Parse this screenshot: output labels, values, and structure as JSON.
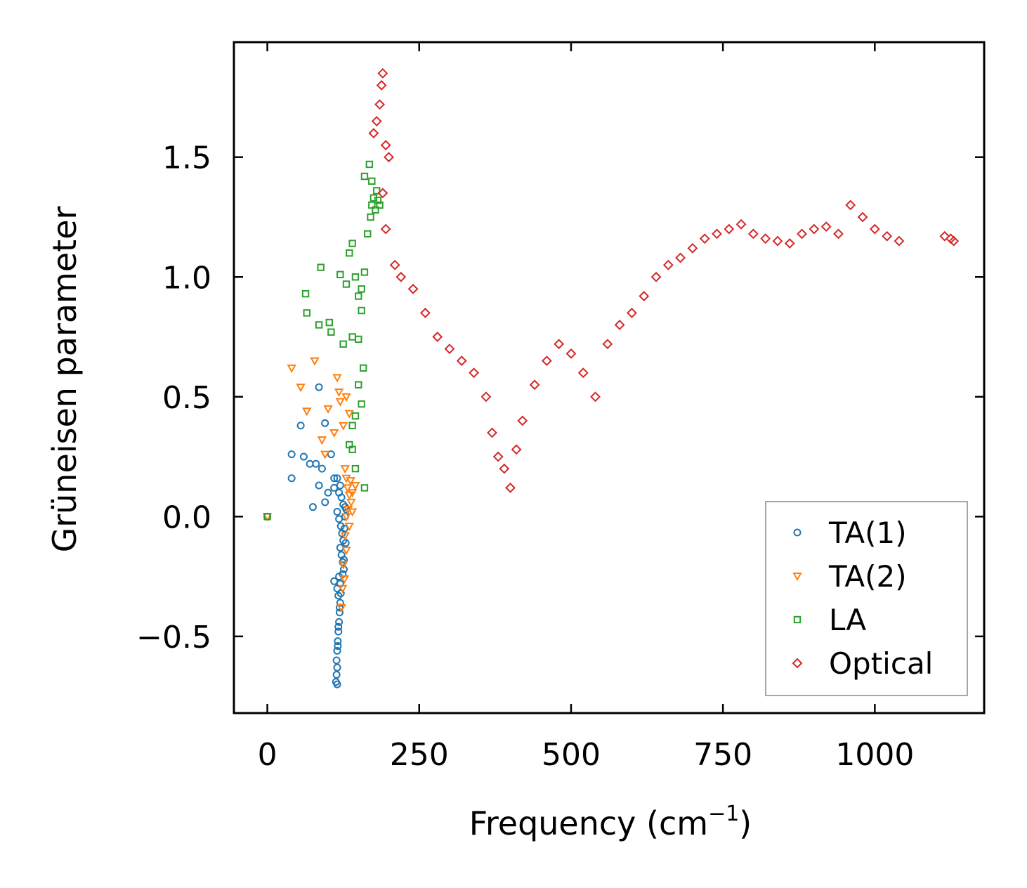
{
  "chart_data": {
    "type": "scatter",
    "title": "",
    "xlabel": "Frequency (cm",
    "xlabel_sup": "−1",
    "xlabel_suffix": ")",
    "ylabel": "Grüneisen parameter",
    "xlim": [
      -55,
      1180
    ],
    "ylim": [
      -0.82,
      1.98
    ],
    "xticks": [
      {
        "value": 0,
        "label": "0"
      },
      {
        "value": 250,
        "label": "250"
      },
      {
        "value": 500,
        "label": "500"
      },
      {
        "value": 750,
        "label": "750"
      },
      {
        "value": 1000,
        "label": "1000"
      }
    ],
    "yticks": [
      {
        "value": -0.5,
        "label": "−0.5"
      },
      {
        "value": 0.0,
        "label": "0.0"
      },
      {
        "value": 0.5,
        "label": "0.5"
      },
      {
        "value": 1.0,
        "label": "1.0"
      },
      {
        "value": 1.5,
        "label": "1.5"
      }
    ],
    "legend_position": "bottom-right",
    "series": [
      {
        "name": "TA(1)",
        "marker": "circle",
        "color": "#1f77b4",
        "points": [
          [
            0,
            0
          ],
          [
            40,
            0.26
          ],
          [
            40,
            0.16
          ],
          [
            55,
            0.38
          ],
          [
            60,
            0.25
          ],
          [
            70,
            0.22
          ],
          [
            75,
            0.04
          ],
          [
            80,
            0.22
          ],
          [
            85,
            0.54
          ],
          [
            85,
            0.13
          ],
          [
            90,
            0.2
          ],
          [
            95,
            0.39
          ],
          [
            95,
            0.06
          ],
          [
            100,
            0.1
          ],
          [
            105,
            0.26
          ],
          [
            110,
            0.16
          ],
          [
            110,
            0.12
          ],
          [
            115,
            0.16
          ],
          [
            118,
            0.1
          ],
          [
            120,
            0.13
          ],
          [
            122,
            0.08
          ],
          [
            125,
            0.05
          ],
          [
            128,
            0.04
          ],
          [
            130,
            0.03
          ],
          [
            115,
            0.02
          ],
          [
            118,
            -0.01
          ],
          [
            121,
            -0.04
          ],
          [
            123,
            -0.07
          ],
          [
            125,
            -0.1
          ],
          [
            120,
            -0.13
          ],
          [
            122,
            -0.16
          ],
          [
            124,
            -0.19
          ],
          [
            126,
            -0.22
          ],
          [
            118,
            -0.25
          ],
          [
            120,
            -0.28
          ],
          [
            115,
            -0.3
          ],
          [
            110,
            -0.27
          ],
          [
            117,
            -0.33
          ],
          [
            120,
            -0.36
          ],
          [
            119,
            -0.4
          ],
          [
            118,
            -0.44
          ],
          [
            117,
            -0.48
          ],
          [
            116,
            -0.52
          ],
          [
            115,
            -0.56
          ],
          [
            114,
            -0.6
          ],
          [
            115,
            -0.63
          ],
          [
            114,
            -0.66
          ],
          [
            113,
            -0.69
          ],
          [
            115,
            -0.7
          ],
          [
            128,
            0.0
          ],
          [
            127,
            -0.05
          ],
          [
            129,
            -0.11
          ],
          [
            126,
            -0.18
          ],
          [
            124,
            -0.24
          ],
          [
            121,
            -0.32
          ],
          [
            119,
            -0.38
          ],
          [
            117,
            -0.46
          ],
          [
            116,
            -0.54
          ]
        ]
      },
      {
        "name": "TA(2)",
        "marker": "triangle-down",
        "color": "#ff7f0e",
        "points": [
          [
            0,
            0
          ],
          [
            40,
            0.62
          ],
          [
            55,
            0.54
          ],
          [
            65,
            0.44
          ],
          [
            78,
            0.65
          ],
          [
            90,
            0.32
          ],
          [
            95,
            0.26
          ],
          [
            100,
            0.45
          ],
          [
            110,
            0.35
          ],
          [
            115,
            0.58
          ],
          [
            118,
            0.52
          ],
          [
            120,
            0.48
          ],
          [
            125,
            0.38
          ],
          [
            130,
            0.5
          ],
          [
            135,
            0.43
          ],
          [
            128,
            0.2
          ],
          [
            130,
            0.16
          ],
          [
            132,
            0.12
          ],
          [
            135,
            0.09
          ],
          [
            138,
            0.06
          ],
          [
            133,
            0.03
          ],
          [
            130,
            0.0
          ],
          [
            135,
            -0.04
          ],
          [
            140,
            0.02
          ],
          [
            128,
            -0.08
          ],
          [
            130,
            -0.14
          ],
          [
            125,
            -0.2
          ],
          [
            127,
            -0.26
          ],
          [
            124,
            -0.3
          ],
          [
            122,
            -0.38
          ],
          [
            140,
            0.1
          ],
          [
            145,
            0.13
          ],
          [
            137,
            0.15
          ]
        ]
      },
      {
        "name": "LA",
        "marker": "square",
        "color": "#2ca02c",
        "points": [
          [
            0,
            0
          ],
          [
            63,
            0.93
          ],
          [
            65,
            0.85
          ],
          [
            85,
            0.8
          ],
          [
            88,
            1.04
          ],
          [
            102,
            0.81
          ],
          [
            105,
            0.77
          ],
          [
            120,
            1.01
          ],
          [
            125,
            0.72
          ],
          [
            130,
            0.97
          ],
          [
            135,
            1.1
          ],
          [
            140,
            1.14
          ],
          [
            145,
            1.0
          ],
          [
            150,
            0.92
          ],
          [
            155,
            0.95
          ],
          [
            160,
            1.02
          ],
          [
            165,
            1.18
          ],
          [
            170,
            1.25
          ],
          [
            172,
            1.3
          ],
          [
            175,
            1.33
          ],
          [
            178,
            1.28
          ],
          [
            180,
            1.36
          ],
          [
            182,
            1.32
          ],
          [
            185,
            1.3
          ],
          [
            168,
            1.47
          ],
          [
            172,
            1.4
          ],
          [
            160,
            1.42
          ],
          [
            158,
            0.62
          ],
          [
            150,
            0.55
          ],
          [
            145,
            0.42
          ],
          [
            140,
            0.38
          ],
          [
            135,
            0.3
          ],
          [
            140,
            0.28
          ],
          [
            155,
            0.47
          ],
          [
            160,
            0.12
          ],
          [
            145,
            0.2
          ],
          [
            140,
            0.75
          ],
          [
            150,
            0.74
          ],
          [
            155,
            0.86
          ]
        ]
      },
      {
        "name": "Optical",
        "marker": "diamond",
        "color": "#d62728",
        "points": [
          [
            190,
            1.85
          ],
          [
            188,
            1.8
          ],
          [
            185,
            1.72
          ],
          [
            180,
            1.65
          ],
          [
            175,
            1.6
          ],
          [
            195,
            1.55
          ],
          [
            200,
            1.5
          ],
          [
            190,
            1.35
          ],
          [
            195,
            1.2
          ],
          [
            210,
            1.05
          ],
          [
            220,
            1.0
          ],
          [
            240,
            0.95
          ],
          [
            260,
            0.85
          ],
          [
            280,
            0.75
          ],
          [
            300,
            0.7
          ],
          [
            320,
            0.65
          ],
          [
            340,
            0.6
          ],
          [
            360,
            0.5
          ],
          [
            370,
            0.35
          ],
          [
            380,
            0.25
          ],
          [
            390,
            0.2
          ],
          [
            400,
            0.12
          ],
          [
            410,
            0.28
          ],
          [
            420,
            0.4
          ],
          [
            440,
            0.55
          ],
          [
            460,
            0.65
          ],
          [
            480,
            0.72
          ],
          [
            500,
            0.68
          ],
          [
            520,
            0.6
          ],
          [
            540,
            0.5
          ],
          [
            560,
            0.72
          ],
          [
            580,
            0.8
          ],
          [
            600,
            0.85
          ],
          [
            620,
            0.92
          ],
          [
            640,
            1.0
          ],
          [
            660,
            1.05
          ],
          [
            680,
            1.08
          ],
          [
            700,
            1.12
          ],
          [
            720,
            1.16
          ],
          [
            740,
            1.18
          ],
          [
            760,
            1.2
          ],
          [
            780,
            1.22
          ],
          [
            800,
            1.18
          ],
          [
            820,
            1.16
          ],
          [
            840,
            1.15
          ],
          [
            860,
            1.14
          ],
          [
            880,
            1.18
          ],
          [
            900,
            1.2
          ],
          [
            920,
            1.21
          ],
          [
            940,
            1.18
          ],
          [
            960,
            1.3
          ],
          [
            980,
            1.25
          ],
          [
            1000,
            1.2
          ],
          [
            1020,
            1.17
          ],
          [
            1040,
            1.15
          ],
          [
            1115,
            1.17
          ],
          [
            1125,
            1.16
          ],
          [
            1130,
            1.15
          ]
        ]
      }
    ]
  }
}
